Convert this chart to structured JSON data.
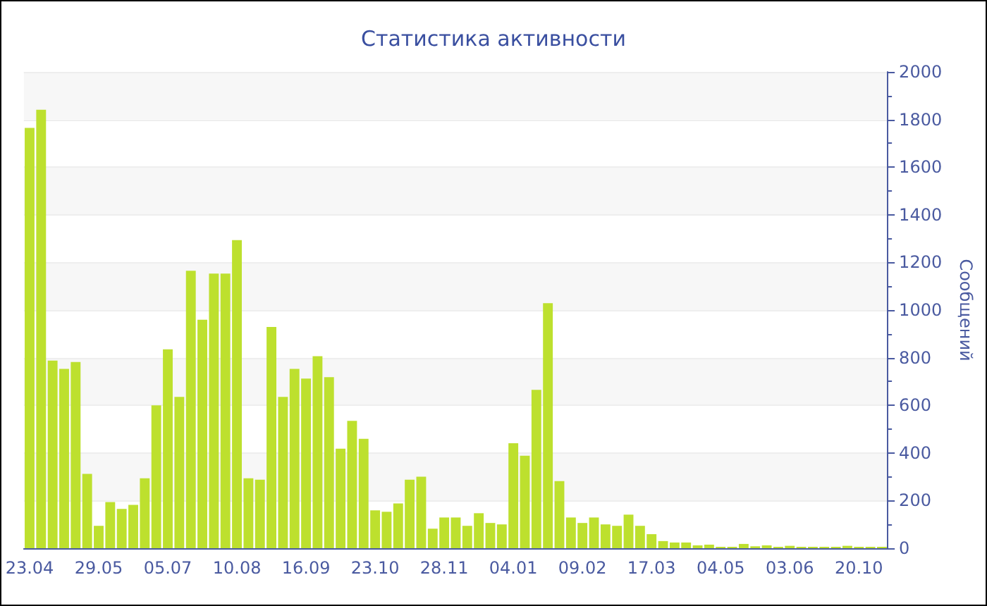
{
  "chart_data": {
    "type": "bar",
    "title": "Статистика активности",
    "ylabel": "Сообщений",
    "color": "#bde02e",
    "categories": [
      "23.04",
      null,
      null,
      null,
      null,
      null,
      "29.05",
      null,
      null,
      null,
      null,
      null,
      "05.07",
      null,
      null,
      null,
      null,
      null,
      "10.08",
      null,
      null,
      null,
      null,
      null,
      "16.09",
      null,
      null,
      null,
      null,
      null,
      "23.10",
      null,
      null,
      null,
      null,
      null,
      "28.11",
      null,
      null,
      null,
      null,
      null,
      "04.01",
      null,
      null,
      null,
      null,
      null,
      "09.02",
      null,
      null,
      null,
      null,
      null,
      "17.03",
      null,
      null,
      null,
      null,
      null,
      "04.05",
      null,
      null,
      null,
      null,
      null,
      "03.06",
      null,
      null,
      null,
      null,
      null,
      "20.10",
      null,
      null
    ],
    "values": [
      1765,
      1841,
      788,
      753,
      782,
      312,
      94,
      194,
      165,
      182,
      294,
      600,
      835,
      635,
      1165,
      959,
      1153,
      1153,
      1294,
      294,
      288,
      929,
      635,
      753,
      712,
      806,
      718,
      418,
      535,
      459,
      159,
      153,
      188,
      288,
      300,
      82,
      129,
      129,
      94,
      147,
      106,
      100,
      441,
      388,
      665,
      1029,
      282,
      129,
      106,
      129,
      100,
      94,
      141,
      94,
      59,
      30,
      24,
      24,
      12,
      15,
      6,
      6,
      18,
      8,
      12,
      6,
      10,
      6,
      6,
      6,
      6,
      10,
      6,
      6,
      6
    ],
    "ylim": [
      0,
      2000
    ],
    "yticks": [
      0,
      200,
      400,
      600,
      800,
      1000,
      1200,
      1400,
      1600,
      1800,
      2000
    ],
    "grid": "y"
  }
}
